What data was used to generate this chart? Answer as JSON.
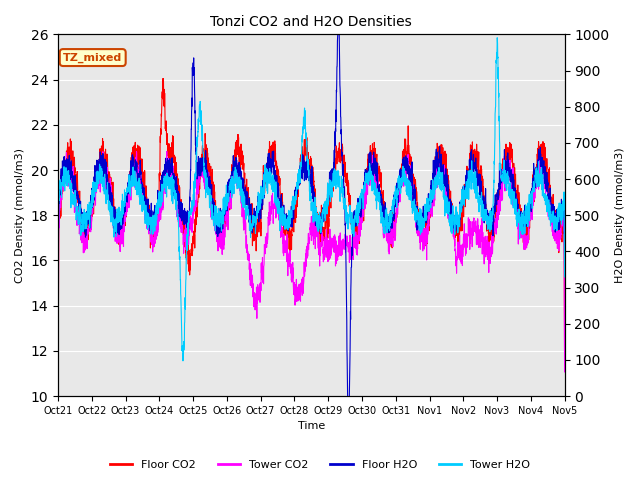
{
  "title": "Tonzi CO2 and H2O Densities",
  "xlabel": "Time",
  "ylabel_left": "CO2 Density (mmol/m3)",
  "ylabel_right": "H2O Density (mmol/m3)",
  "ylim_left": [
    10,
    26
  ],
  "ylim_right": [
    0,
    1000
  ],
  "yticks_left": [
    10,
    12,
    14,
    16,
    18,
    20,
    22,
    24,
    26
  ],
  "yticks_right": [
    0,
    100,
    200,
    300,
    400,
    500,
    600,
    700,
    800,
    900,
    1000
  ],
  "xtick_labels": [
    "Oct 21",
    "Oct 22",
    "Oct 23",
    "Oct 24",
    "Oct 25",
    "Oct 26",
    "Oct 27",
    "Oct 28",
    "Oct 29",
    "Oct 30",
    "Oct 31",
    "Nov 1",
    "Nov 2",
    "Nov 3",
    "Nov 4",
    "Nov 5"
  ],
  "annotation_text": "TZ_mixed",
  "annotation_bg": "#FFFFCC",
  "annotation_edge": "#CC4400",
  "colors": {
    "floor_co2": "#FF0000",
    "tower_co2": "#FF00FF",
    "floor_h2o": "#0000CC",
    "tower_h2o": "#00CCFF"
  },
  "legend_labels": [
    "Floor CO2",
    "Tower CO2",
    "Floor H2O",
    "Tower H2O"
  ],
  "background_color": "#E8E8E8",
  "grid_color": "#FFFFFF",
  "n_points": 2880,
  "seed": 42
}
